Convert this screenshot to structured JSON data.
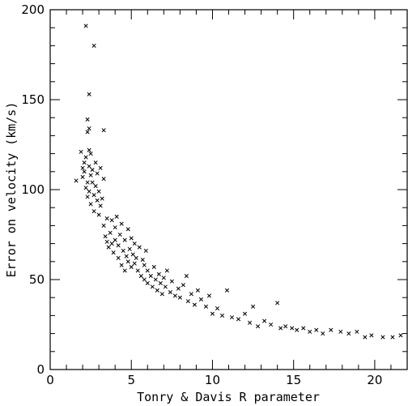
{
  "chart_data": {
    "type": "scatter",
    "title": "",
    "xlabel": "Tonry & Davis R parameter",
    "ylabel": "Error on velocity (km/s)",
    "xlim": [
      0,
      22
    ],
    "ylim": [
      0,
      200
    ],
    "xticks": [
      0,
      5,
      10,
      15,
      20
    ],
    "yticks": [
      0,
      50,
      100,
      150,
      200
    ],
    "x_tick_labels": [
      "0",
      "5",
      "10",
      "15",
      "20"
    ],
    "y_tick_labels": [
      "0",
      "50",
      "100",
      "150",
      "200"
    ],
    "grid": false,
    "marker": "x",
    "marker_color": "#000000",
    "series": [
      {
        "points": [
          [
            2.2,
            191
          ],
          [
            2.7,
            180
          ],
          [
            2.4,
            153
          ],
          [
            2.3,
            139
          ],
          [
            2.4,
            134
          ],
          [
            2.3,
            132
          ],
          [
            3.3,
            133
          ],
          [
            1.6,
            105
          ],
          [
            1.9,
            121
          ],
          [
            2.0,
            112
          ],
          [
            2.0,
            107
          ],
          [
            2.1,
            115
          ],
          [
            2.1,
            110
          ],
          [
            2.2,
            101
          ],
          [
            2.2,
            118
          ],
          [
            2.3,
            104
          ],
          [
            2.3,
            96
          ],
          [
            2.4,
            122
          ],
          [
            2.4,
            113
          ],
          [
            2.4,
            99
          ],
          [
            2.5,
            120
          ],
          [
            2.5,
            108
          ],
          [
            2.5,
            92
          ],
          [
            2.6,
            111
          ],
          [
            2.6,
            104
          ],
          [
            2.7,
            97
          ],
          [
            2.7,
            88
          ],
          [
            2.8,
            115
          ],
          [
            2.8,
            102
          ],
          [
            2.9,
            94
          ],
          [
            2.9,
            109
          ],
          [
            3.0,
            86
          ],
          [
            3.0,
            99
          ],
          [
            3.1,
            112
          ],
          [
            3.1,
            91
          ],
          [
            3.2,
            95
          ],
          [
            3.3,
            80
          ],
          [
            3.3,
            106
          ],
          [
            3.4,
            74
          ],
          [
            3.5,
            71
          ],
          [
            3.5,
            84
          ],
          [
            3.6,
            68
          ],
          [
            3.7,
            76
          ],
          [
            3.8,
            83
          ],
          [
            3.8,
            70
          ],
          [
            3.9,
            65
          ],
          [
            4.0,
            79
          ],
          [
            4.0,
            72
          ],
          [
            4.1,
            85
          ],
          [
            4.2,
            62
          ],
          [
            4.2,
            69
          ],
          [
            4.3,
            75
          ],
          [
            4.4,
            81
          ],
          [
            4.4,
            58
          ],
          [
            4.5,
            66
          ],
          [
            4.6,
            72
          ],
          [
            4.6,
            55
          ],
          [
            4.7,
            63
          ],
          [
            4.8,
            78
          ],
          [
            4.8,
            60
          ],
          [
            4.9,
            67
          ],
          [
            5.0,
            57
          ],
          [
            5.0,
            73
          ],
          [
            5.1,
            64
          ],
          [
            5.2,
            59
          ],
          [
            5.2,
            70
          ],
          [
            5.3,
            62
          ],
          [
            5.4,
            55
          ],
          [
            5.5,
            68
          ],
          [
            5.6,
            52
          ],
          [
            5.7,
            61
          ],
          [
            5.8,
            50
          ],
          [
            5.8,
            58
          ],
          [
            5.9,
            66
          ],
          [
            6.0,
            48
          ],
          [
            6.0,
            55
          ],
          [
            6.2,
            52
          ],
          [
            6.3,
            46
          ],
          [
            6.4,
            57
          ],
          [
            6.5,
            50
          ],
          [
            6.6,
            44
          ],
          [
            6.7,
            53
          ],
          [
            6.8,
            48
          ],
          [
            6.9,
            42
          ],
          [
            7.0,
            51
          ],
          [
            7.1,
            46
          ],
          [
            7.2,
            55
          ],
          [
            7.4,
            43
          ],
          [
            7.5,
            49
          ],
          [
            7.7,
            41
          ],
          [
            7.9,
            45
          ],
          [
            8.0,
            40
          ],
          [
            8.2,
            47
          ],
          [
            8.4,
            52
          ],
          [
            8.5,
            38
          ],
          [
            8.7,
            42
          ],
          [
            8.9,
            36
          ],
          [
            9.1,
            44
          ],
          [
            9.3,
            39
          ],
          [
            9.6,
            35
          ],
          [
            9.8,
            41
          ],
          [
            10.0,
            31
          ],
          [
            10.3,
            34
          ],
          [
            10.6,
            30
          ],
          [
            10.9,
            44
          ],
          [
            11.2,
            29
          ],
          [
            11.6,
            28
          ],
          [
            12.0,
            31
          ],
          [
            12.3,
            26
          ],
          [
            12.5,
            35
          ],
          [
            12.8,
            24
          ],
          [
            13.2,
            27
          ],
          [
            13.6,
            25
          ],
          [
            14.0,
            37
          ],
          [
            14.2,
            23
          ],
          [
            14.5,
            24
          ],
          [
            14.9,
            23
          ],
          [
            15.2,
            22
          ],
          [
            15.6,
            23
          ],
          [
            16.0,
            21
          ],
          [
            16.4,
            22
          ],
          [
            16.8,
            20
          ],
          [
            17.3,
            22
          ],
          [
            17.9,
            21
          ],
          [
            18.4,
            20
          ],
          [
            18.9,
            21
          ],
          [
            19.4,
            18
          ],
          [
            19.8,
            19
          ],
          [
            20.5,
            18
          ],
          [
            21.1,
            18
          ],
          [
            21.6,
            19
          ]
        ]
      }
    ]
  }
}
